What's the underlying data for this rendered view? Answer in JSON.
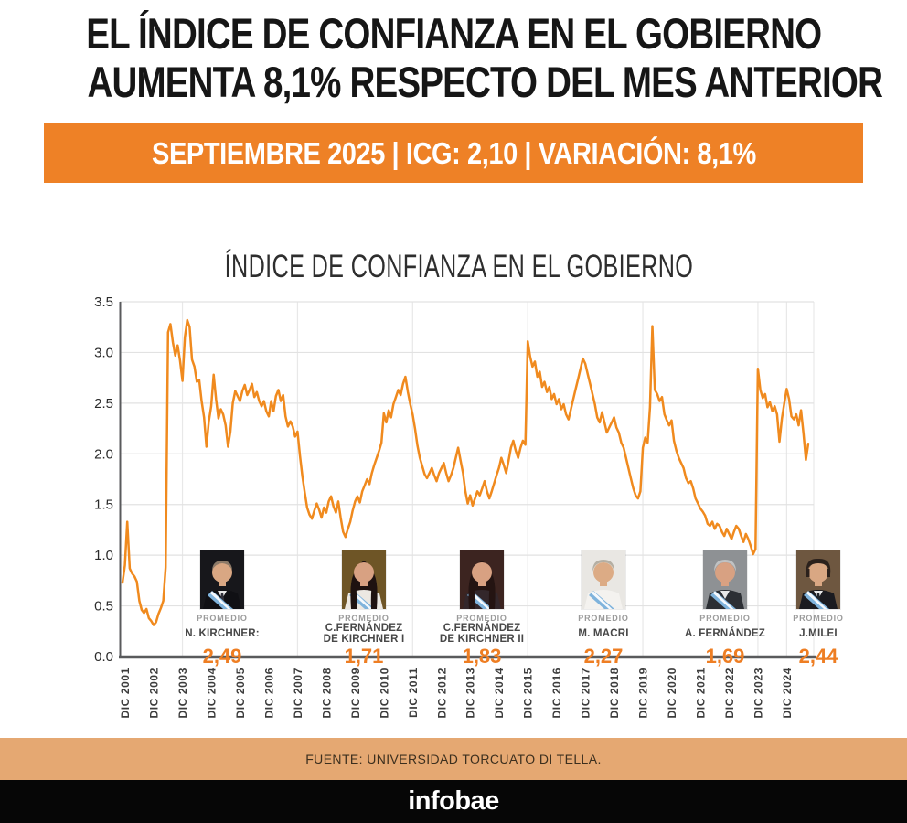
{
  "header": {
    "title_line1": "EL ÍNDICE DE CONFIANZA EN EL GOBIERNO",
    "title_line2": "AUMENTA 8,1% RESPECTO DEL MES ANTERIOR",
    "banner": "SEPTIEMBRE 2025 | ICG: 2,10 | VARIACIÓN: 8,1%"
  },
  "colors": {
    "banner_bg": "#EE8126",
    "line": "#F08A1E",
    "value_text": "#EE7E23",
    "source_band_bg": "#E5A872",
    "grid": "#E2E2E2",
    "vgrid": "#E8E8E8",
    "axis": "#595A5C",
    "tick_text": "#3c3c3c",
    "ytick_text": "#2b2b2b"
  },
  "chart_data": {
    "type": "line",
    "title": "ÍNDICE DE CONFIANZA EN EL GOBIERNO",
    "series_name": "ICG mensual (Universidad Torcuato Di Tella)",
    "start": "2001-11",
    "end": "2025-09",
    "frequency": "monthly",
    "ylim": [
      0,
      3.5
    ],
    "grid": "horizontal 0.5 steps; faint vertical lines at presidential transitions",
    "legend": "none",
    "yticks": [
      "3.5",
      "3.0",
      "2.5",
      "2.0",
      "1.5",
      "1.0",
      "0.5",
      "0.0"
    ],
    "xticks": [
      "DIC 2001",
      "DIC 2002",
      "DIC 2003",
      "DIC 2004",
      "DIC 2005",
      "DIC 2006",
      "DIC 2007",
      "DIC 2008",
      "DIC 2009",
      "DIC 2010",
      "DIC 2011",
      "DIC 2012",
      "DIC 2013",
      "DIC 2014",
      "DIC 2015",
      "DIC 2016",
      "DIC 2017",
      "DIC 2018",
      "DIC 2019",
      "DIC 2020",
      "DIC 2021",
      "DIC 2022",
      "DIC 2023",
      "DIC 2024"
    ],
    "values": [
      0.73,
      0.9,
      1.33,
      0.87,
      0.82,
      0.79,
      0.74,
      0.55,
      0.46,
      0.43,
      0.47,
      0.38,
      0.35,
      0.31,
      0.34,
      0.42,
      0.48,
      0.55,
      0.88,
      3.2,
      3.28,
      3.1,
      2.97,
      3.07,
      2.92,
      2.72,
      3.15,
      3.32,
      3.25,
      2.93,
      2.86,
      2.71,
      2.73,
      2.52,
      2.36,
      2.07,
      2.32,
      2.47,
      2.78,
      2.54,
      2.35,
      2.44,
      2.39,
      2.28,
      2.07,
      2.22,
      2.5,
      2.62,
      2.57,
      2.52,
      2.62,
      2.68,
      2.58,
      2.63,
      2.69,
      2.56,
      2.61,
      2.52,
      2.47,
      2.52,
      2.42,
      2.37,
      2.52,
      2.42,
      2.57,
      2.63,
      2.52,
      2.58,
      2.37,
      2.27,
      2.32,
      2.27,
      2.17,
      2.22,
      1.98,
      1.78,
      1.62,
      1.47,
      1.4,
      1.36,
      1.44,
      1.51,
      1.45,
      1.37,
      1.47,
      1.42,
      1.53,
      1.58,
      1.48,
      1.42,
      1.53,
      1.37,
      1.23,
      1.18,
      1.26,
      1.33,
      1.44,
      1.53,
      1.58,
      1.52,
      1.63,
      1.69,
      1.75,
      1.7,
      1.81,
      1.89,
      1.96,
      2.03,
      2.11,
      2.4,
      2.31,
      2.43,
      2.36,
      2.49,
      2.56,
      2.63,
      2.58,
      2.69,
      2.76,
      2.61,
      2.49,
      2.39,
      2.25,
      2.08,
      1.96,
      1.88,
      1.8,
      1.76,
      1.81,
      1.86,
      1.79,
      1.73,
      1.81,
      1.86,
      1.91,
      1.81,
      1.73,
      1.79,
      1.86,
      1.96,
      2.06,
      1.93,
      1.81,
      1.63,
      1.51,
      1.59,
      1.49,
      1.56,
      1.63,
      1.59,
      1.66,
      1.73,
      1.63,
      1.56,
      1.63,
      1.71,
      1.79,
      1.86,
      1.96,
      1.89,
      1.81,
      1.93,
      2.06,
      2.13,
      2.03,
      1.96,
      2.06,
      2.13,
      2.09,
      3.11,
      2.96,
      2.86,
      2.91,
      2.76,
      2.81,
      2.66,
      2.71,
      2.61,
      2.66,
      2.54,
      2.59,
      2.49,
      2.54,
      2.44,
      2.49,
      2.39,
      2.34,
      2.44,
      2.54,
      2.64,
      2.74,
      2.84,
      2.94,
      2.89,
      2.79,
      2.69,
      2.59,
      2.49,
      2.36,
      2.31,
      2.41,
      2.31,
      2.21,
      2.26,
      2.31,
      2.36,
      2.26,
      2.21,
      2.11,
      2.06,
      1.96,
      1.86,
      1.76,
      1.66,
      1.59,
      1.56,
      1.63,
      2.06,
      2.16,
      2.11,
      2.46,
      3.26,
      2.63,
      2.59,
      2.52,
      2.56,
      2.39,
      2.33,
      2.28,
      2.33,
      2.13,
      2.03,
      1.96,
      1.91,
      1.86,
      1.76,
      1.71,
      1.73,
      1.66,
      1.56,
      1.51,
      1.46,
      1.43,
      1.39,
      1.31,
      1.29,
      1.33,
      1.26,
      1.31,
      1.29,
      1.23,
      1.19,
      1.26,
      1.21,
      1.16,
      1.23,
      1.29,
      1.26,
      1.19,
      1.13,
      1.21,
      1.16,
      1.09,
      1.01,
      1.06,
      2.84,
      2.63,
      2.55,
      2.59,
      2.46,
      2.51,
      2.42,
      2.47,
      2.39,
      2.12,
      2.35,
      2.5,
      2.64,
      2.54,
      2.37,
      2.34,
      2.39,
      2.28,
      2.43,
      2.2,
      1.94,
      2.1
    ],
    "annotations_note": "latest point Sep 2025 = 2.10 (+8.1% vs 1.94 previous month)",
    "presidents": [
      {
        "label_top": "PROMEDIO",
        "name": "N. KIRCHNER:",
        "name2": "",
        "value": "2,49",
        "avatar": {
          "style": "bald",
          "bg": "#17171B",
          "hair": "#8C7A68",
          "skin": "#D9A783",
          "suit": "#101014",
          "sash": true,
          "shirt": "#E8E8E8",
          "tie": "#30303A"
        }
      },
      {
        "label_top": "PROMEDIO",
        "name": "C.FERNÁNDEZ",
        "name2": "DE KIRCHNER I",
        "value": "1,71",
        "avatar": {
          "style": "long",
          "bg": "#6E5526",
          "hair": "#1E1210",
          "skin": "#D8A182",
          "suit": "#ECE8E2",
          "sash": true
        }
      },
      {
        "label_top": "PROMEDIO",
        "name": "C.FERNÁNDEZ",
        "name2": "DE KIRCHNER II",
        "value": "1,83",
        "avatar": {
          "style": "long",
          "bg": "#3C2420",
          "hair": "#241412",
          "skin": "#D8A182",
          "suit": "#33272B",
          "sash": true
        }
      },
      {
        "label_top": "PROMEDIO",
        "name": "M. MACRI",
        "name2": "",
        "value": "2,27",
        "avatar": {
          "style": "short",
          "bg": "#E9E7E3",
          "hair": "#B5AFA3",
          "skin": "#DCAB85",
          "suit": "#F4F2EF",
          "sash": true
        }
      },
      {
        "label_top": "PROMEDIO",
        "name": "A. FERNÁNDEZ",
        "name2": "",
        "value": "1,69",
        "avatar": {
          "style": "short",
          "bg": "#8E9194",
          "hair": "#C0C2C3",
          "skin": "#D8A182",
          "suit": "#2C2F34",
          "sash": true,
          "shirt": "#E8E8E8"
        }
      },
      {
        "label_top": "PROMEDIO",
        "name": "J.MILEI",
        "name2": "",
        "value": "2,44",
        "avatar": {
          "style": "messy",
          "bg": "#6E5740",
          "hair": "#2B211C",
          "skin": "#D9A783",
          "suit": "#1B1B20",
          "sash": true,
          "shirt": "#E8E8E8",
          "tie": "#20242A"
        }
      }
    ]
  },
  "footer": {
    "source": "FUENTE: UNIVERSIDAD TORCUATO DI TELLA.",
    "logo": "infobae"
  }
}
